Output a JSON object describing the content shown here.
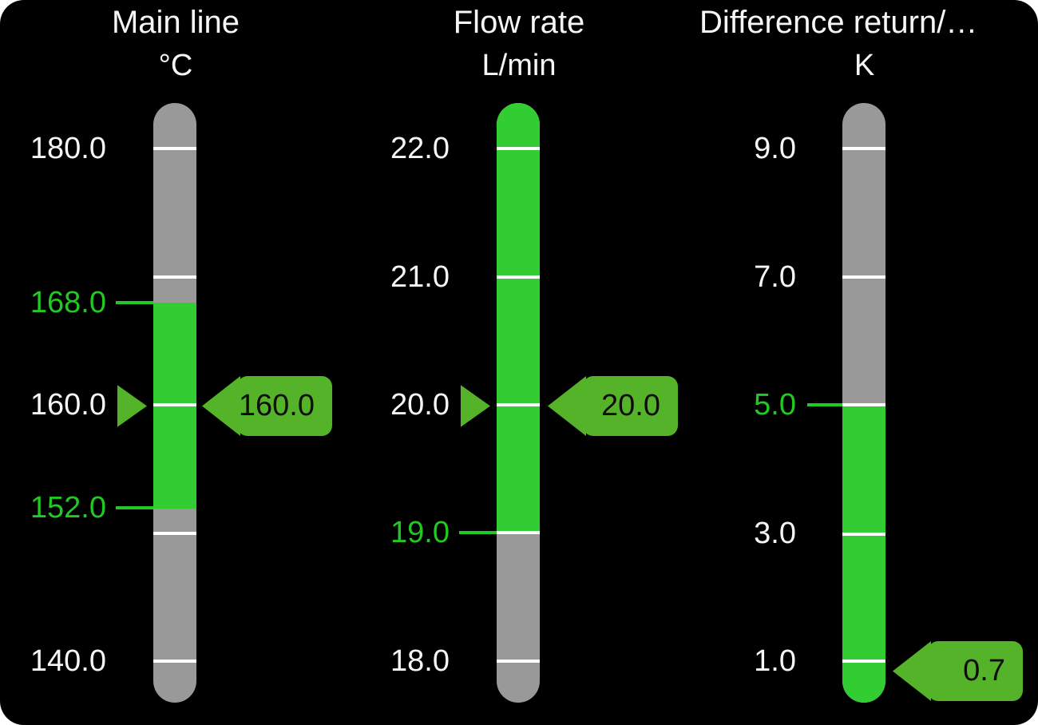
{
  "colors": {
    "panel_bg": "#000000",
    "bar_gray": "#999999",
    "bar_ok_green": "#32cd32",
    "indicator_green": "#55b32a",
    "tick_white": "#ffffff",
    "label_white": "#f6f6f6",
    "label_green": "#22c922",
    "badge_text": "#0d0d0d"
  },
  "gauges": [
    {
      "title": "Main line",
      "unit": "°C",
      "value": 160.0,
      "value_label": "160.0",
      "scale": {
        "min": 140.0,
        "max": 180.0
      },
      "tick_values": [
        180.0,
        170.0,
        160.0,
        150.0,
        140.0
      ],
      "green_zone": {
        "from": 152.0,
        "to": 168.0
      },
      "limit_markers": [
        {
          "value": 168.0,
          "label": "168.0",
          "kind": "high"
        },
        {
          "value": 152.0,
          "label": "152.0",
          "kind": "low"
        }
      ],
      "labels": [
        {
          "text": "180.0",
          "kind": "scale"
        },
        {
          "text": "168.0",
          "kind": "limit"
        },
        {
          "text": "160.0",
          "kind": "scale"
        },
        {
          "text": "152.0",
          "kind": "limit"
        },
        {
          "text": "140.0",
          "kind": "scale"
        }
      ]
    },
    {
      "title": "Flow rate",
      "unit": "L/min",
      "value": 20.0,
      "value_label": "20.0",
      "scale": {
        "min": 18.0,
        "max": 22.0
      },
      "tick_values": [
        22.0,
        21.0,
        20.0,
        19.0,
        18.0
      ],
      "green_zone": {
        "from": 19.0,
        "to": "scale_top"
      },
      "limit_markers": [
        {
          "value": 19.0,
          "label": "19.0",
          "kind": "low"
        }
      ],
      "labels": [
        {
          "text": "22.0",
          "kind": "scale"
        },
        {
          "text": "21.0",
          "kind": "scale"
        },
        {
          "text": "20.0",
          "kind": "scale"
        },
        {
          "text": "19.0",
          "kind": "limit"
        },
        {
          "text": "18.0",
          "kind": "scale"
        }
      ]
    },
    {
      "title": "Difference return/…",
      "unit": "K",
      "value": 0.7,
      "value_label": "0.7",
      "scale": {
        "min": 1.0,
        "max": 9.0
      },
      "tick_values": [
        9.0,
        7.0,
        5.0,
        3.0,
        1.0
      ],
      "green_zone": {
        "from": "scale_bottom",
        "to": 5.0
      },
      "limit_markers": [
        {
          "value": 5.0,
          "label": "5.0",
          "kind": "high"
        }
      ],
      "labels": [
        {
          "text": "9.0",
          "kind": "scale"
        },
        {
          "text": "7.0",
          "kind": "scale"
        },
        {
          "text": "5.0",
          "kind": "limit"
        },
        {
          "text": "3.0",
          "kind": "scale"
        },
        {
          "text": "1.0",
          "kind": "scale"
        }
      ]
    }
  ]
}
